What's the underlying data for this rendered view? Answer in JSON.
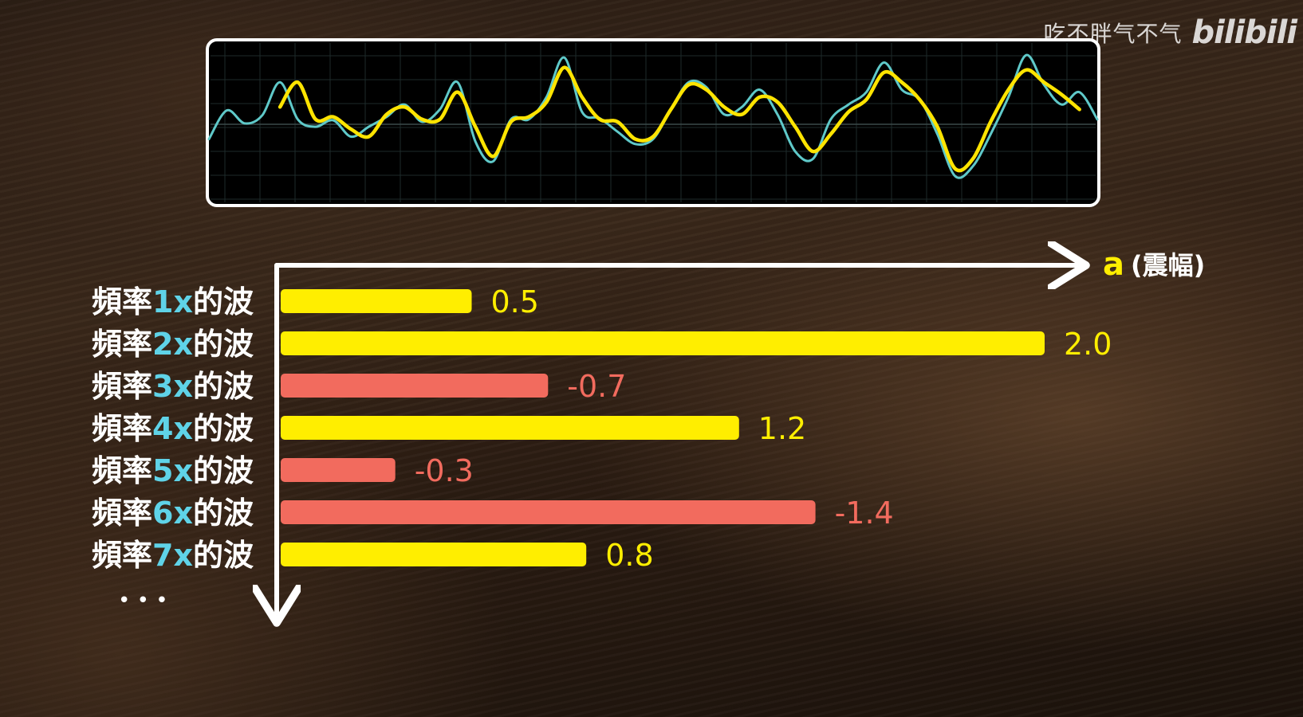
{
  "watermark": {
    "author": "吃不胖气不气",
    "logo": "bilibili"
  },
  "colors": {
    "wave_detail": "#5fc9c9",
    "wave_smooth": "#ffe400",
    "bar_positive": "#ffee00",
    "bar_negative": "#f26b5e",
    "label_freq": "#5fd3e8",
    "label_text": "#ffffff",
    "panel_bg": "#000000",
    "panel_border": "#ffffff"
  },
  "chart_data": [
    {
      "type": "line",
      "series": [
        {
          "name": "",
          "x": [
            0,
            0.02,
            0.04,
            0.06,
            0.08,
            0.1,
            0.12,
            0.14,
            0.16,
            0.18,
            0.2,
            0.22,
            0.24,
            0.26,
            0.28,
            0.3,
            0.32,
            0.34,
            0.36,
            0.38,
            0.4,
            0.42,
            0.44,
            0.46,
            0.48,
            0.5,
            0.52,
            0.54,
            0.56,
            0.58,
            0.6,
            0.62,
            0.64,
            0.66,
            0.68,
            0.7,
            0.72,
            0.74,
            0.76,
            0.78,
            0.8,
            0.82,
            0.84,
            0.86,
            0.88,
            0.9,
            0.92,
            0.94,
            0.96,
            0.98,
            1.0
          ],
          "y": [
            -0.3,
            0.28,
            0.02,
            0.18,
            0.85,
            0.1,
            -0.05,
            0.08,
            -0.25,
            -0.05,
            0.15,
            0.4,
            0.05,
            0.3,
            0.85,
            -0.35,
            -0.75,
            0.1,
            0.1,
            0.55,
            1.35,
            0.25,
            0.12,
            -0.15,
            -0.4,
            -0.3,
            0.3,
            0.85,
            0.75,
            0.2,
            0.35,
            0.7,
            0.2,
            -0.55,
            -0.7,
            0.1,
            0.4,
            0.65,
            1.25,
            0.7,
            0.5,
            -0.2,
            -1.05,
            -0.85,
            -0.2,
            0.55,
            1.4,
            0.8,
            0.4,
            0.65,
            0.1
          ]
        },
        {
          "name": "",
          "x": [
            0,
            0.02,
            0.04,
            0.06,
            0.08,
            0.1,
            0.12,
            0.14,
            0.16,
            0.18,
            0.2,
            0.22,
            0.24,
            0.26,
            0.28,
            0.3,
            0.32,
            0.34,
            0.36,
            0.38,
            0.4,
            0.42,
            0.44,
            0.46,
            0.48,
            0.5,
            0.52,
            0.54,
            0.56,
            0.58,
            0.6,
            0.62,
            0.64,
            0.66,
            0.68,
            0.7,
            0.72,
            0.74,
            0.76,
            0.78,
            0.8,
            0.82,
            0.84,
            0.86,
            0.88,
            0.9,
            0.92,
            0.94,
            0.96,
            0.98,
            1.0
          ],
          "y": [
            null,
            null,
            null,
            null,
            0.35,
            0.85,
            0.1,
            0.15,
            -0.1,
            -0.25,
            0.2,
            0.35,
            0.1,
            0.1,
            0.65,
            -0.05,
            -0.65,
            0.05,
            0.15,
            0.45,
            1.15,
            0.55,
            0.1,
            0.05,
            -0.3,
            -0.25,
            0.3,
            0.8,
            0.7,
            0.35,
            0.2,
            0.55,
            0.45,
            -0.05,
            -0.55,
            -0.2,
            0.25,
            0.5,
            1.05,
            0.85,
            0.5,
            -0.05,
            -0.9,
            -0.7,
            0.05,
            0.7,
            1.1,
            0.85,
            0.6,
            0.3,
            null
          ]
        }
      ]
    },
    {
      "type": "bar",
      "orientation": "horizontal",
      "categories": [
        "頻率1x的波",
        "頻率2x的波",
        "頻率3x的波",
        "頻率4x的波",
        "頻率5x的波",
        "頻率6x的波",
        "頻率7x的波"
      ],
      "label_prefix": "頻率",
      "label_freq": [
        "1x",
        "2x",
        "3x",
        "4x",
        "5x",
        "6x",
        "7x"
      ],
      "label_suffix": "的波",
      "values": [
        0.5,
        2.0,
        -0.7,
        1.2,
        -0.3,
        -1.4,
        0.8
      ],
      "value_labels": [
        "0.5",
        "2.0",
        "-0.7",
        "1.2",
        "-0.3",
        "-1.4",
        "0.8"
      ],
      "xlabel_symbol": "a",
      "xlabel_paren": "(震幅)",
      "ellipsis": "• • •",
      "xlim": [
        0,
        2.0
      ],
      "magnitude_as_length": true
    }
  ]
}
